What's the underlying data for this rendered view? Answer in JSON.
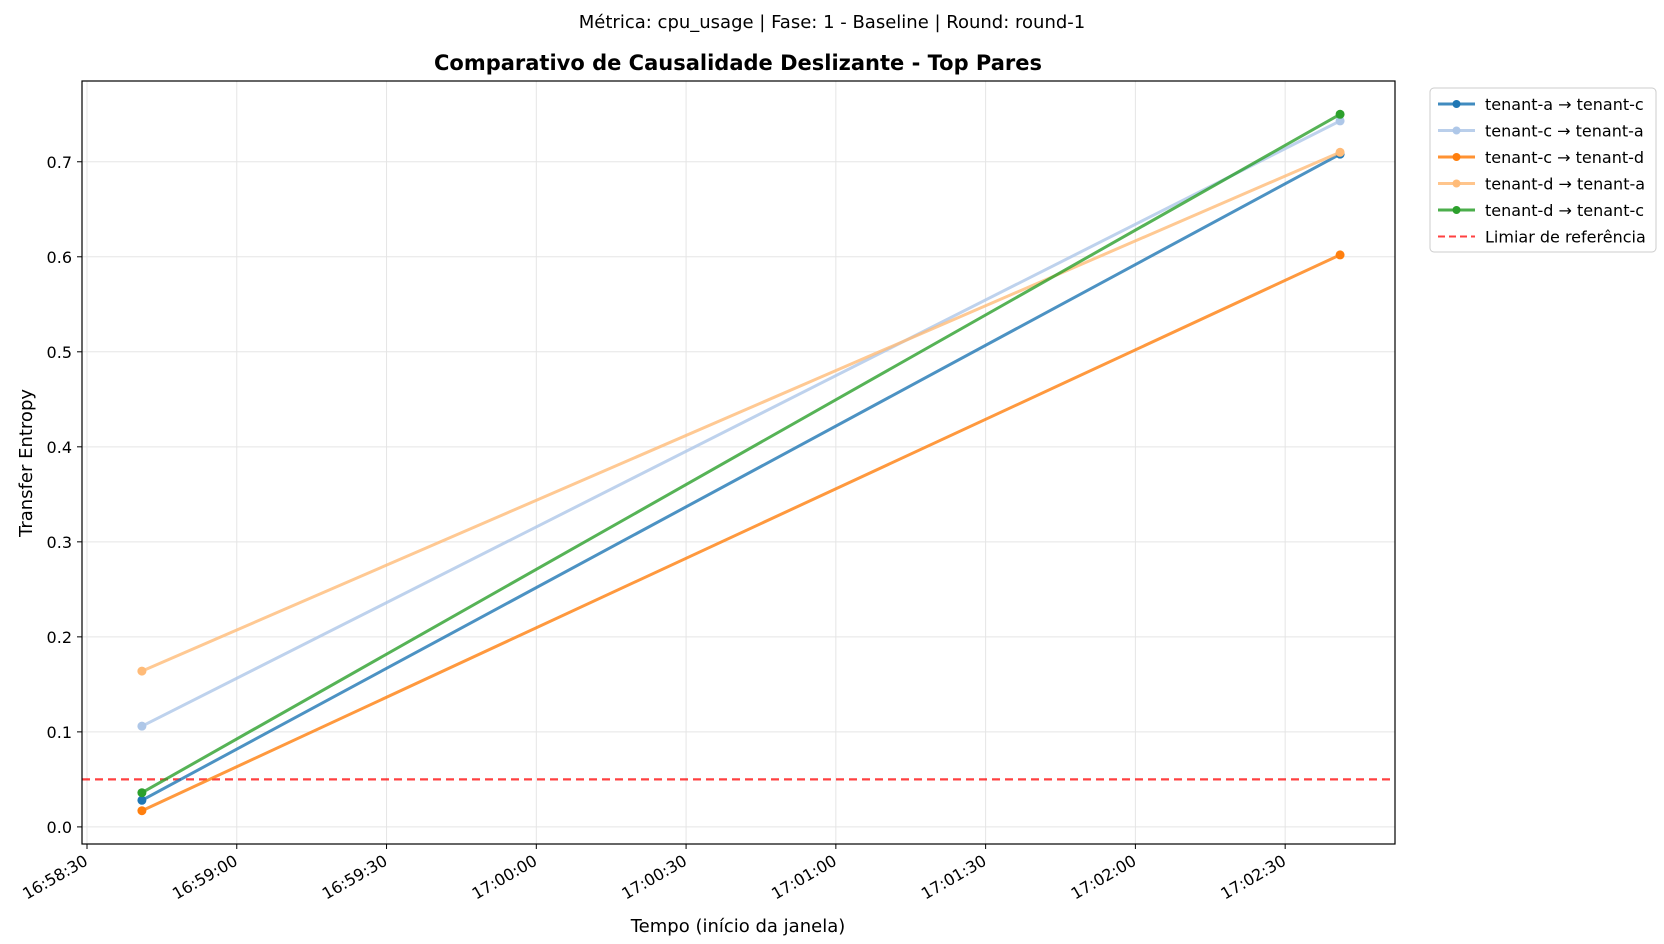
{
  "suptitle": "Métrica: cpu_usage | Fase: 1 - Baseline | Round: round-1",
  "chart_data": {
    "type": "line",
    "title": "Comparativo de Causalidade Deslizante - Top Pares",
    "xlabel": "Tempo (início da janela)",
    "ylabel": "Transfer Entropy",
    "x": [
      "16:58:41",
      "17:02:41"
    ],
    "xlim": [
      "16:58:29",
      "17:02:52"
    ],
    "ylim": [
      -0.018,
      0.785
    ],
    "xticks": [
      "16:58:30",
      "16:59:00",
      "16:59:30",
      "17:00:00",
      "17:00:30",
      "17:01:00",
      "17:01:30",
      "17:02:00",
      "17:02:30"
    ],
    "yticks": [
      0.0,
      0.1,
      0.2,
      0.3,
      0.4,
      0.5,
      0.6,
      0.7
    ],
    "ytick_labels": [
      "0.0",
      "0.1",
      "0.2",
      "0.3",
      "0.4",
      "0.5",
      "0.6",
      "0.7"
    ],
    "grid": true,
    "legend_position": "outside-top-right",
    "series": [
      {
        "name": "tenant-a → tenant-c",
        "color": "#1f77b4",
        "values": [
          0.028,
          0.708
        ]
      },
      {
        "name": "tenant-c → tenant-a",
        "color": "#aec7e8",
        "values": [
          0.106,
          0.743
        ]
      },
      {
        "name": "tenant-c → tenant-d",
        "color": "#ff7f0e",
        "values": [
          0.017,
          0.602
        ]
      },
      {
        "name": "tenant-d → tenant-a",
        "color": "#ffbb78",
        "values": [
          0.164,
          0.71
        ]
      },
      {
        "name": "tenant-d → tenant-c",
        "color": "#2ca02c",
        "values": [
          0.036,
          0.75
        ]
      }
    ],
    "reference_line": {
      "name": "Limiar de referência",
      "value": 0.05,
      "color": "#ff0000",
      "style": "dashed"
    }
  }
}
